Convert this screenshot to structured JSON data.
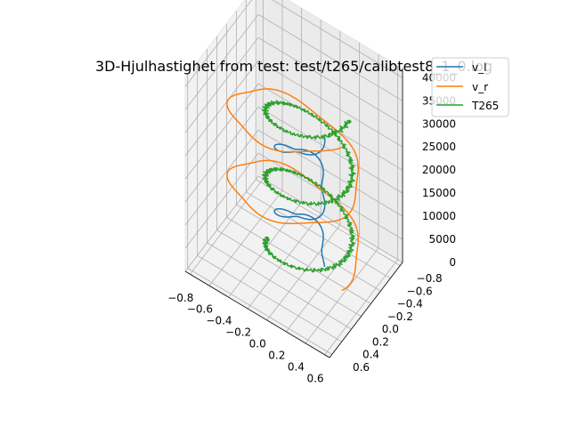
{
  "chart_data": {
    "type": "line",
    "projection": "3d",
    "title": "3D-Hjulhastighet from test: test/t265/calibtest8_1_0.log",
    "xlabel": "",
    "ylabel": "",
    "zlabel": "",
    "grid": true,
    "legend_position": "top-right",
    "x_ticks": [
      "−0.8",
      "−0.6",
      "−0.4",
      "−0.2",
      "0.0",
      "0.2",
      "0.4",
      "0.6"
    ],
    "y_ticks": [
      "−0.8",
      "−0.6",
      "−0.4",
      "−0.2",
      "0.0",
      "0.2",
      "0.4",
      "0.6"
    ],
    "z_ticks": [
      "0",
      "5000",
      "10000",
      "15000",
      "20000",
      "25000",
      "30000",
      "35000",
      "40000"
    ],
    "xlim": [
      -0.85,
      0.65
    ],
    "ylim": [
      -0.85,
      0.65
    ],
    "zlim": [
      0,
      42000
    ],
    "series": [
      {
        "name": "v_l",
        "color": "#1f77b4"
      },
      {
        "name": "v_r",
        "color": "#ff7f0e"
      },
      {
        "name": "T265",
        "color": "#2ca02c"
      }
    ]
  }
}
